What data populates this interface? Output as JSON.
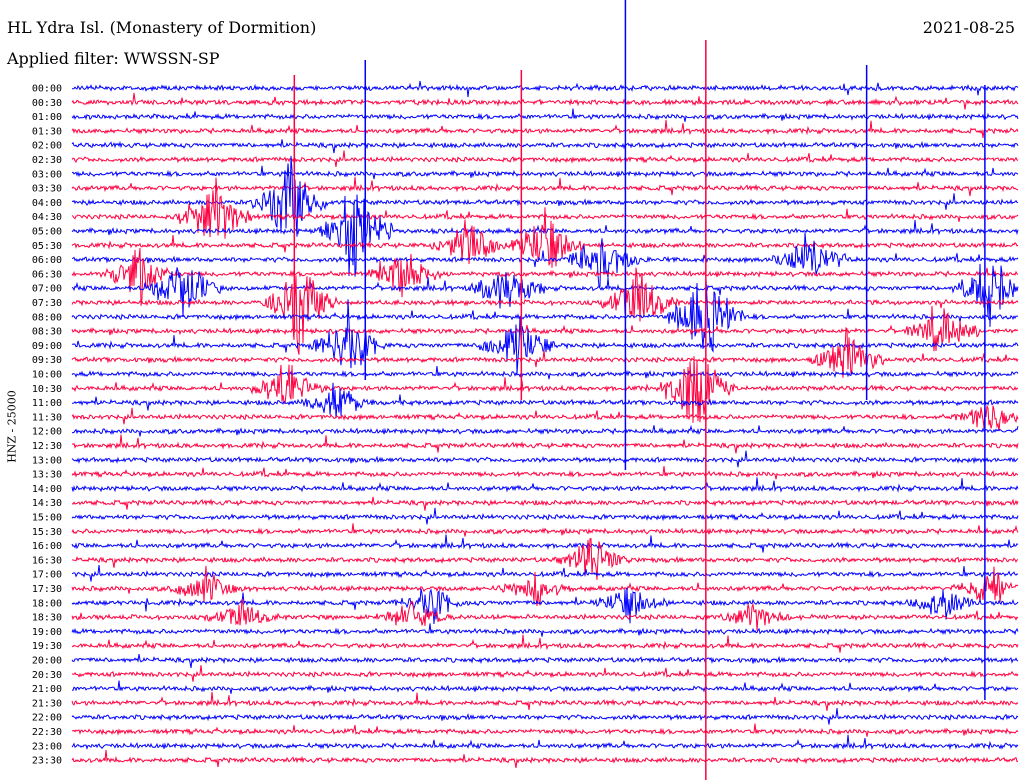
{
  "header": {
    "station": "HL Ydra Isl. (Monastery of Dormition)",
    "filter": "Applied filter: WWSSN-SP",
    "date": "2021-08-25"
  },
  "chart_data": {
    "type": "line",
    "ylabel": "HNZ - 25000",
    "trace_colors": [
      "#0000ff",
      "#ff0040"
    ],
    "times": [
      "00:00",
      "00:30",
      "01:00",
      "01:30",
      "02:00",
      "02:30",
      "03:00",
      "03:30",
      "04:00",
      "04:30",
      "05:00",
      "05:30",
      "06:00",
      "06:30",
      "07:00",
      "07:30",
      "08:00",
      "08:30",
      "09:00",
      "09:30",
      "10:00",
      "10:30",
      "11:00",
      "11:30",
      "12:00",
      "12:30",
      "13:00",
      "13:30",
      "14:00",
      "14:30",
      "15:00",
      "15:30",
      "16:00",
      "16:30",
      "17:00",
      "17:30",
      "18:00",
      "18:30",
      "19:00",
      "19:30",
      "20:00",
      "20:30",
      "21:00",
      "21:30",
      "22:00",
      "22:30",
      "23:00",
      "23:30"
    ],
    "bursts": [
      {
        "row": 8,
        "t": 0.23,
        "amp": 60
      },
      {
        "row": 9,
        "t": 0.15,
        "amp": 55
      },
      {
        "row": 10,
        "t": 0.3,
        "amp": 70
      },
      {
        "row": 11,
        "t": 0.42,
        "amp": 35
      },
      {
        "row": 11,
        "t": 0.5,
        "amp": 45
      },
      {
        "row": 12,
        "t": 0.56,
        "amp": 40
      },
      {
        "row": 12,
        "t": 0.78,
        "amp": 40
      },
      {
        "row": 13,
        "t": 0.07,
        "amp": 40
      },
      {
        "row": 13,
        "t": 0.35,
        "amp": 35
      },
      {
        "row": 14,
        "t": 0.12,
        "amp": 45
      },
      {
        "row": 14,
        "t": 0.46,
        "amp": 40
      },
      {
        "row": 14,
        "t": 0.97,
        "amp": 45
      },
      {
        "row": 15,
        "t": 0.24,
        "amp": 60
      },
      {
        "row": 15,
        "t": 0.6,
        "amp": 50
      },
      {
        "row": 16,
        "t": 0.67,
        "amp": 75
      },
      {
        "row": 17,
        "t": 0.92,
        "amp": 35
      },
      {
        "row": 18,
        "t": 0.47,
        "amp": 40
      },
      {
        "row": 18,
        "t": 0.29,
        "amp": 50
      },
      {
        "row": 19,
        "t": 0.82,
        "amp": 40
      },
      {
        "row": 21,
        "t": 0.23,
        "amp": 40
      },
      {
        "row": 21,
        "t": 0.66,
        "amp": 70
      },
      {
        "row": 22,
        "t": 0.28,
        "amp": 25
      },
      {
        "row": 23,
        "t": 0.97,
        "amp": 25
      },
      {
        "row": 33,
        "t": 0.55,
        "amp": 30
      },
      {
        "row": 35,
        "t": 0.14,
        "amp": 25
      },
      {
        "row": 35,
        "t": 0.49,
        "amp": 22
      },
      {
        "row": 35,
        "t": 0.97,
        "amp": 25
      },
      {
        "row": 36,
        "t": 0.38,
        "amp": 25
      },
      {
        "row": 36,
        "t": 0.59,
        "amp": 22
      },
      {
        "row": 36,
        "t": 0.92,
        "amp": 22
      },
      {
        "row": 37,
        "t": 0.18,
        "amp": 20
      },
      {
        "row": 37,
        "t": 0.36,
        "amp": 22
      },
      {
        "row": 37,
        "t": 0.72,
        "amp": 20
      }
    ],
    "spikes": [
      {
        "t": 0.585,
        "top": 0,
        "bottom": 470
      },
      {
        "t": 0.67,
        "top": 40,
        "bottom": 780
      },
      {
        "t": 0.31,
        "top": 60,
        "bottom": 380
      },
      {
        "t": 0.475,
        "top": 70,
        "bottom": 400
      },
      {
        "t": 0.965,
        "top": 85,
        "bottom": 700
      },
      {
        "t": 0.235,
        "top": 75,
        "bottom": 330
      },
      {
        "t": 0.84,
        "top": 65,
        "bottom": 400
      }
    ]
  }
}
